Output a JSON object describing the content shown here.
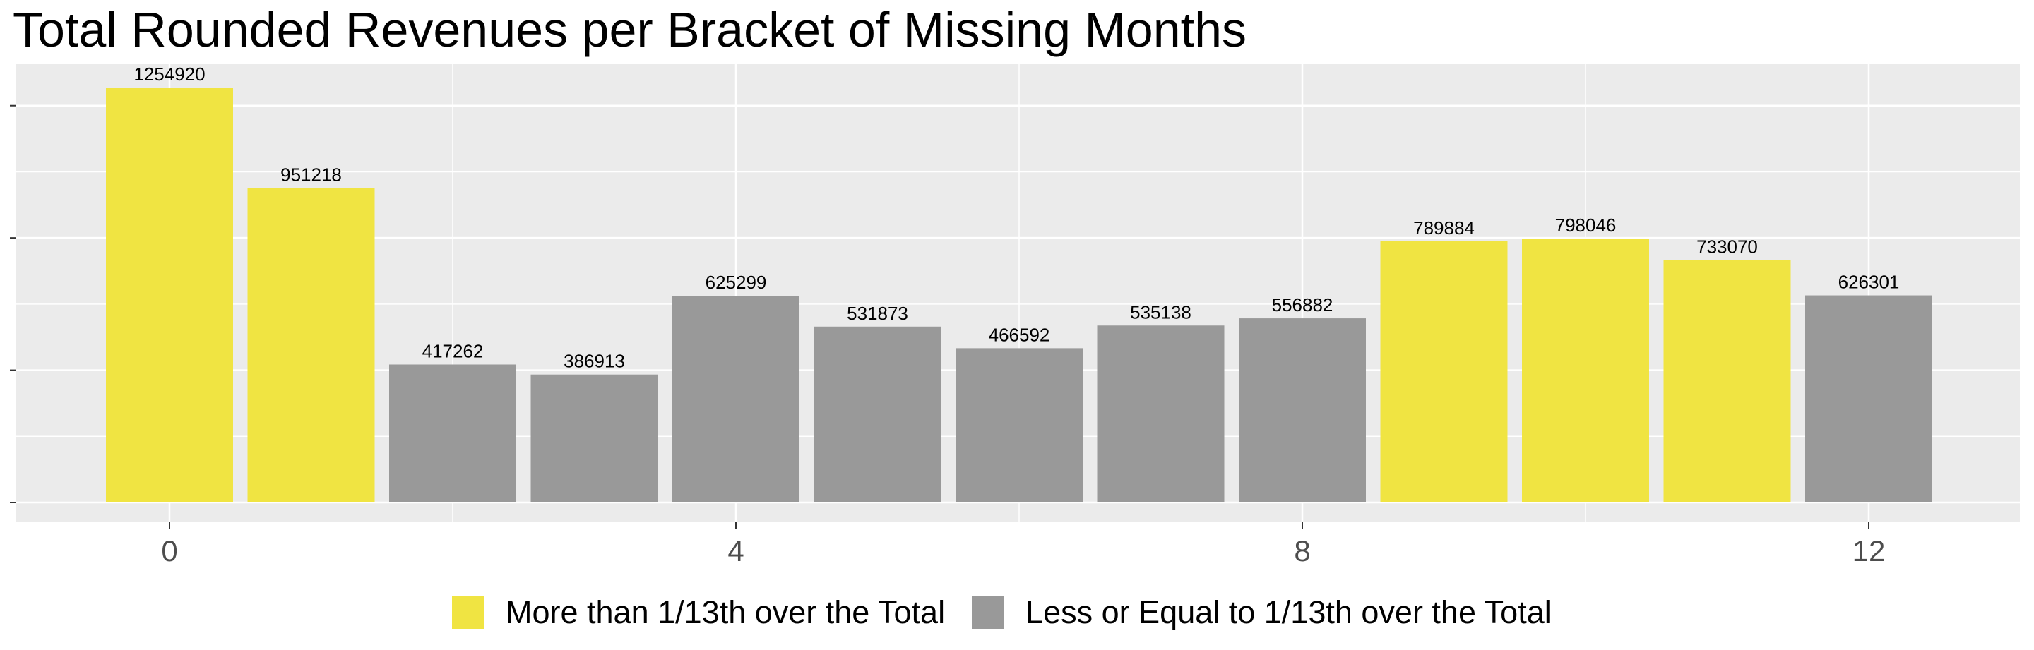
{
  "chart_data": {
    "type": "bar",
    "title": "Total Rounded Revenues per Bracket of Missing Months",
    "xlabel": "",
    "ylabel": "",
    "x": [
      0,
      1,
      2,
      3,
      4,
      5,
      6,
      7,
      8,
      9,
      10,
      11,
      12
    ],
    "values": [
      1254920,
      951218,
      417262,
      386913,
      625299,
      531873,
      466592,
      535138,
      556882,
      789884,
      798046,
      733070,
      626301
    ],
    "groups": [
      "More than 1/13th over the Total",
      "More than 1/13th over the Total",
      "Less or Equal to 1/13th over the Total",
      "Less or Equal to 1/13th over the Total",
      "Less or Equal to 1/13th over the Total",
      "Less or Equal to 1/13th over the Total",
      "Less or Equal to 1/13th over the Total",
      "Less or Equal to 1/13th over the Total",
      "Less or Equal to 1/13th over the Total",
      "More than 1/13th over the Total",
      "More than 1/13th over the Total",
      "More than 1/13th over the Total",
      "Less or Equal to 1/13th over the Total"
    ],
    "x_ticks": [
      "0",
      "4",
      "8",
      "12"
    ],
    "x_tick_values": [
      0,
      4,
      8,
      12
    ],
    "xlim": [
      -0.5,
      12.5
    ],
    "ylim": [
      0,
      1254920
    ],
    "y_tick_values": [
      0,
      400000,
      800000,
      1200000
    ],
    "y_tick_labels_shown": false,
    "grid": true,
    "legend": {
      "position": "bottom",
      "entries": [
        {
          "label": "More than 1/13th over the Total",
          "color": "#F0E442"
        },
        {
          "label": "Less or Equal to 1/13th over the Total",
          "color": "#999999"
        }
      ]
    }
  },
  "colors": {
    "panel_background": "#EBEBEB",
    "grid_line": "#FFFFFF",
    "highlight_bar": "#F0E442",
    "other_bar": "#999999"
  }
}
